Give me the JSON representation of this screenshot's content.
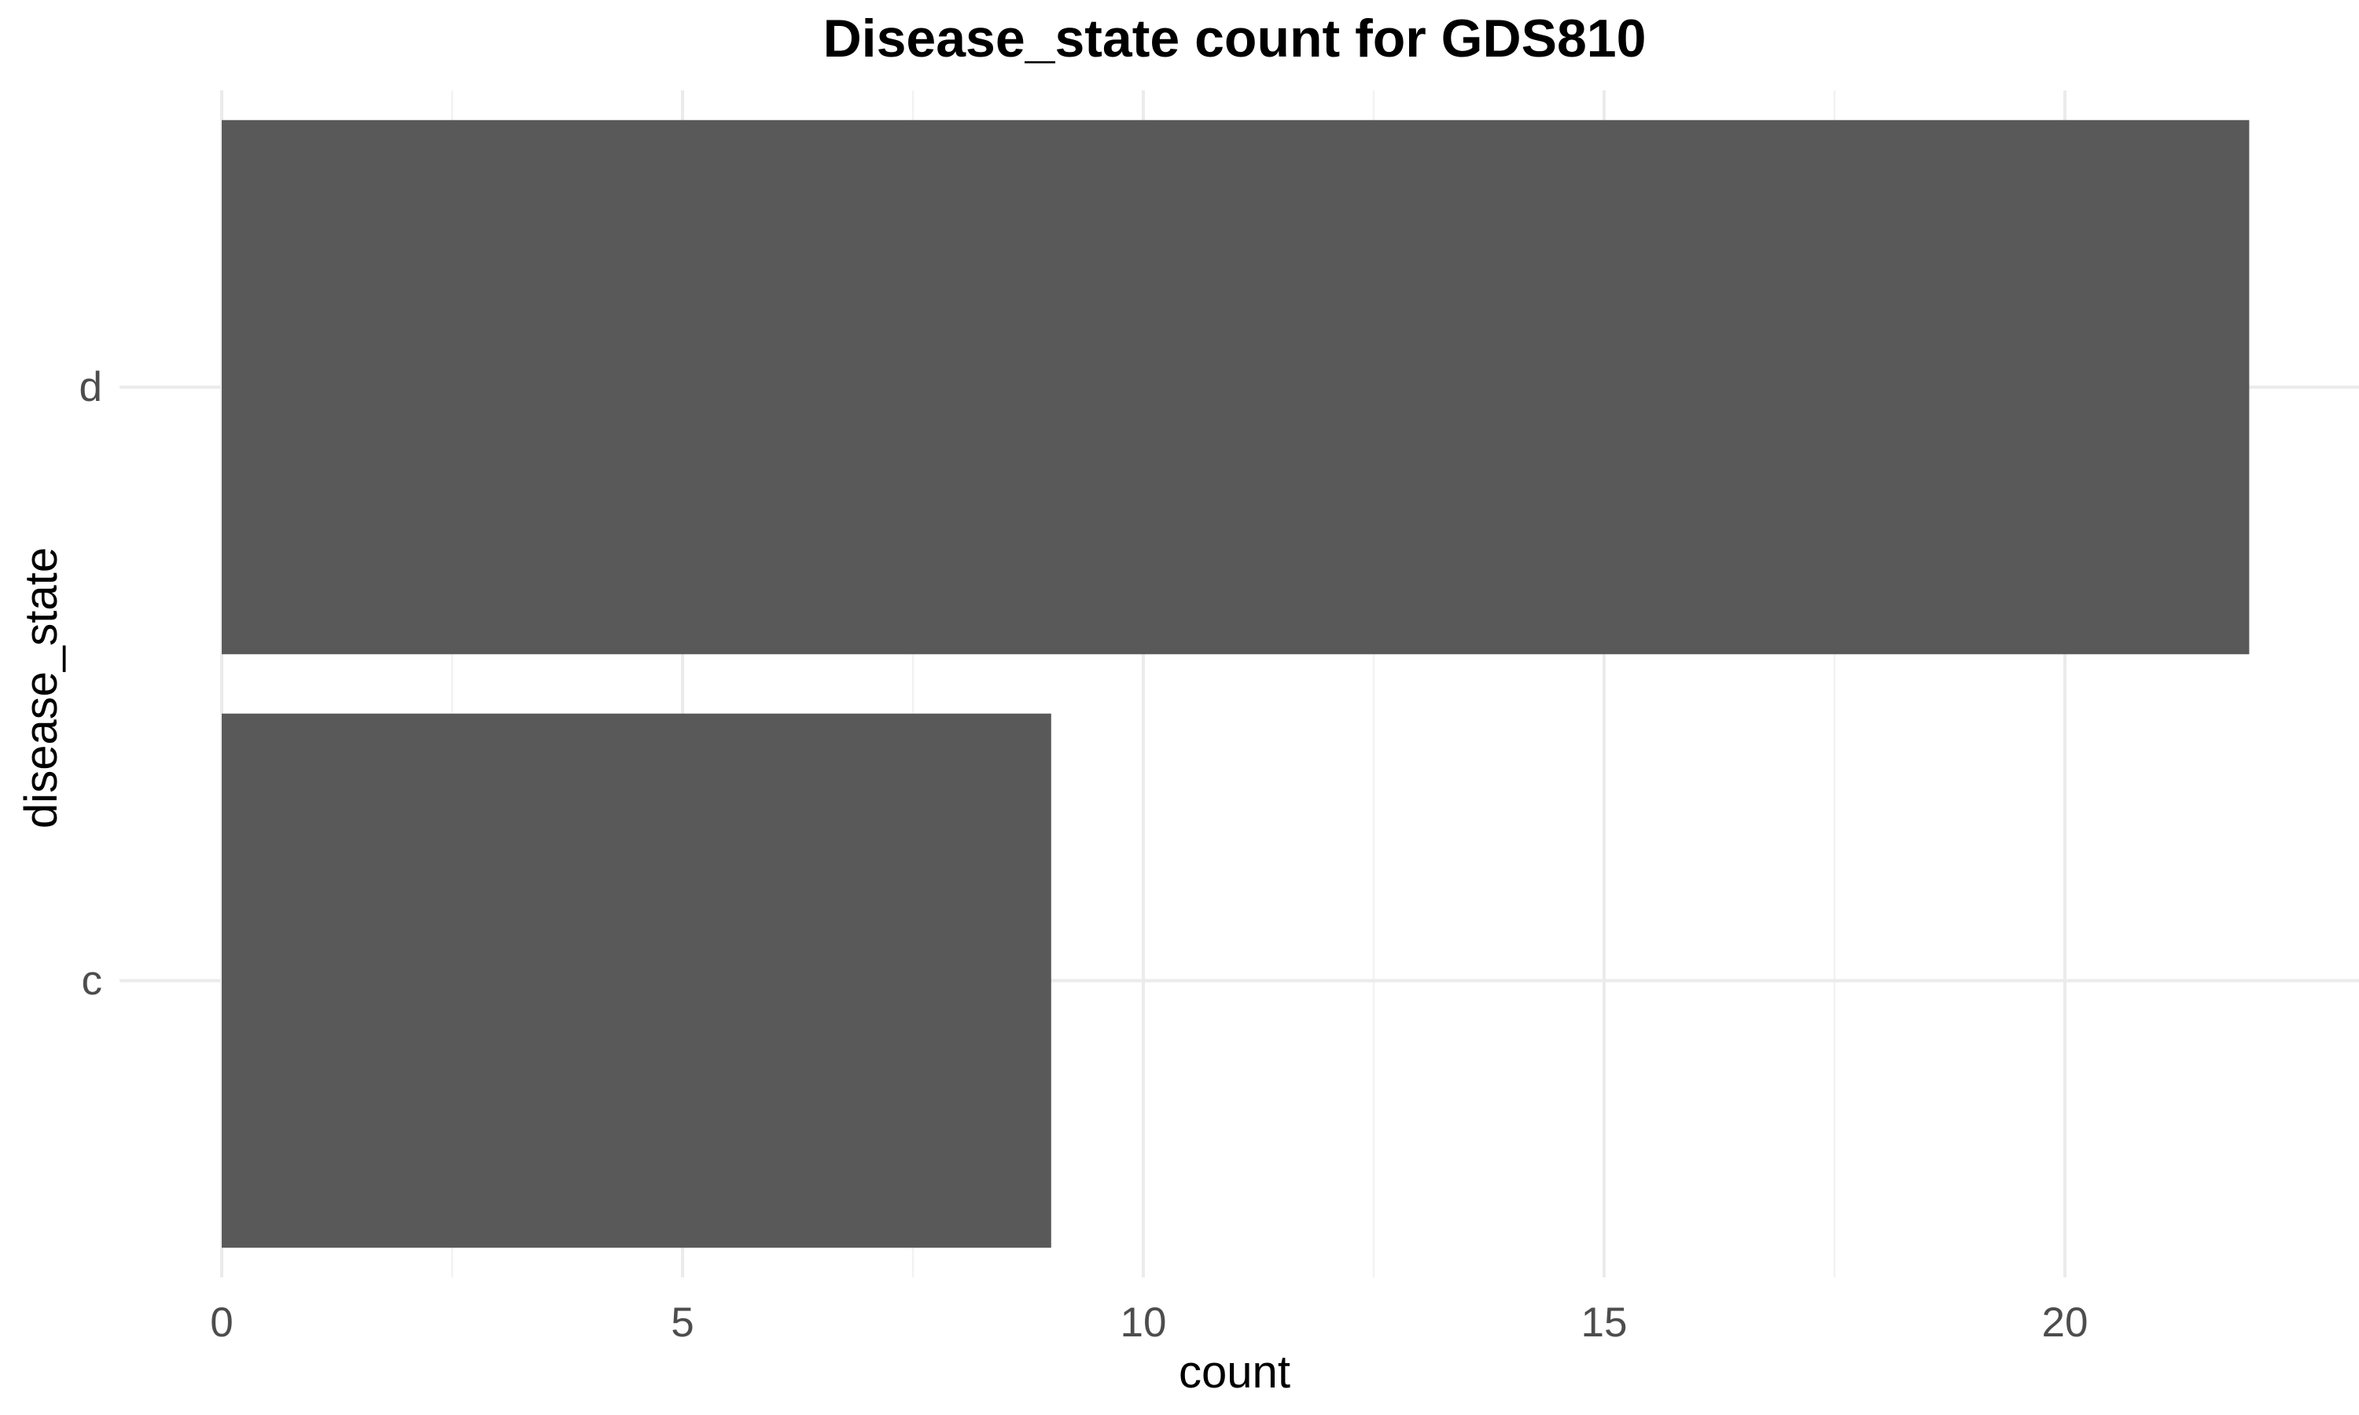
{
  "chart_data": {
    "type": "bar",
    "orientation": "horizontal",
    "title": "Disease_state count for GDS810",
    "xlabel": "count",
    "ylabel": "disease_state",
    "categories": [
      "c",
      "d"
    ],
    "values": [
      9,
      22
    ],
    "xlim": [
      0,
      22.5
    ],
    "xticks": [
      0,
      5,
      10,
      15,
      20
    ],
    "grid": true,
    "bar_color": "#595959",
    "background": "#ffffff"
  }
}
